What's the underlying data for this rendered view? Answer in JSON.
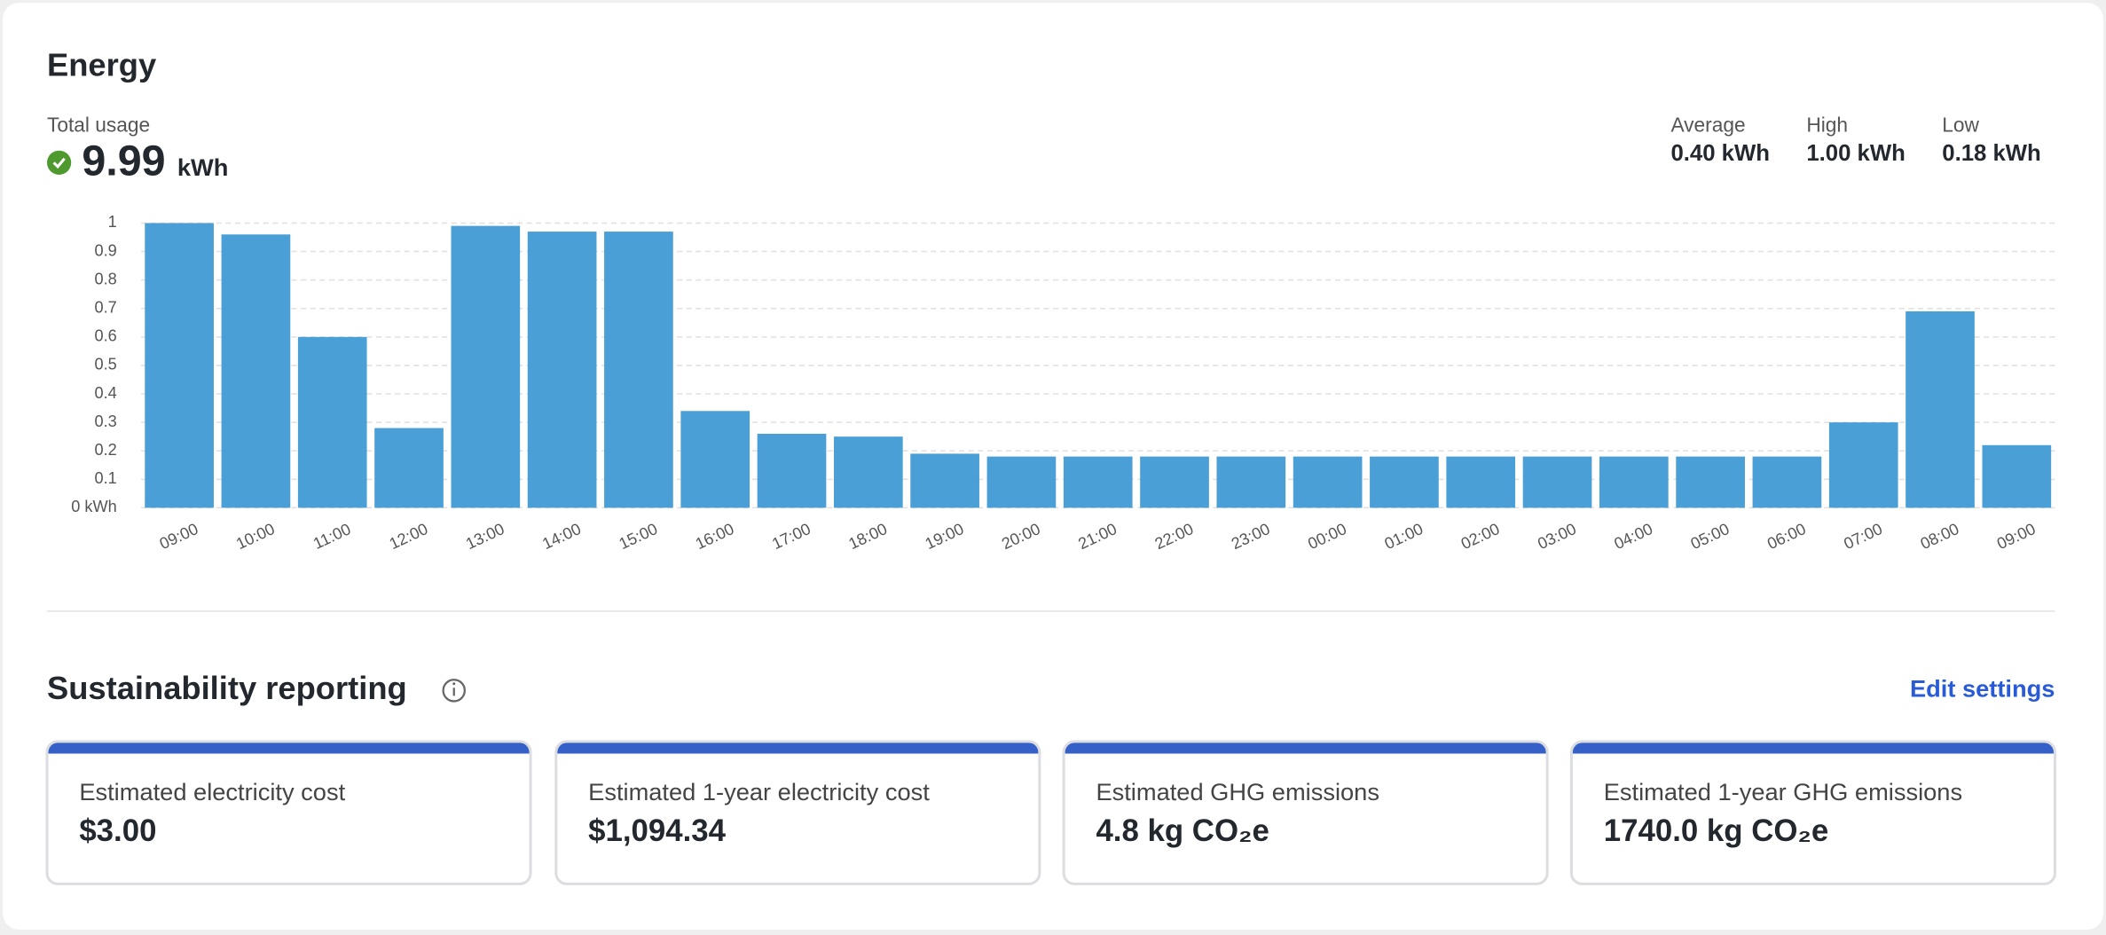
{
  "header": {
    "title": "Energy"
  },
  "summary": {
    "total_label": "Total usage",
    "total_value": "9.99",
    "total_unit": "kWh",
    "stats": [
      {
        "label": "Average",
        "value": "0.40 kWh"
      },
      {
        "label": "High",
        "value": "1.00 kWh"
      },
      {
        "label": "Low",
        "value": "0.18 kWh"
      }
    ]
  },
  "chart_data": {
    "type": "bar",
    "categories": [
      "09:00",
      "10:00",
      "11:00",
      "12:00",
      "13:00",
      "14:00",
      "15:00",
      "16:00",
      "17:00",
      "18:00",
      "19:00",
      "20:00",
      "21:00",
      "22:00",
      "23:00",
      "00:00",
      "01:00",
      "02:00",
      "03:00",
      "04:00",
      "05:00",
      "06:00",
      "07:00",
      "08:00",
      "09:00"
    ],
    "values": [
      1.0,
      0.96,
      0.6,
      0.28,
      0.99,
      0.97,
      0.97,
      0.34,
      0.26,
      0.25,
      0.19,
      0.18,
      0.18,
      0.18,
      0.18,
      0.18,
      0.18,
      0.18,
      0.18,
      0.18,
      0.18,
      0.18,
      0.3,
      0.69,
      0.22
    ],
    "color": "#4a9fd6",
    "ylim": [
      0,
      1
    ],
    "yticks": [
      {
        "value": 0,
        "label": "0 kWh"
      },
      0.1,
      0.2,
      0.3,
      0.4,
      0.5,
      0.6,
      0.7,
      0.8,
      0.9,
      1
    ],
    "grid": true
  },
  "sustainability": {
    "title": "Sustainability reporting",
    "action": "Edit settings",
    "cards": [
      {
        "label": "Estimated electricity cost",
        "value": "$3.00"
      },
      {
        "label": "Estimated 1-year electricity cost",
        "value": "$1,094.34"
      },
      {
        "label": "Estimated GHG emissions",
        "value": "4.8 kg CO₂e"
      },
      {
        "label": "Estimated 1-year GHG emissions",
        "value": "1740.0 kg CO₂e"
      }
    ]
  }
}
